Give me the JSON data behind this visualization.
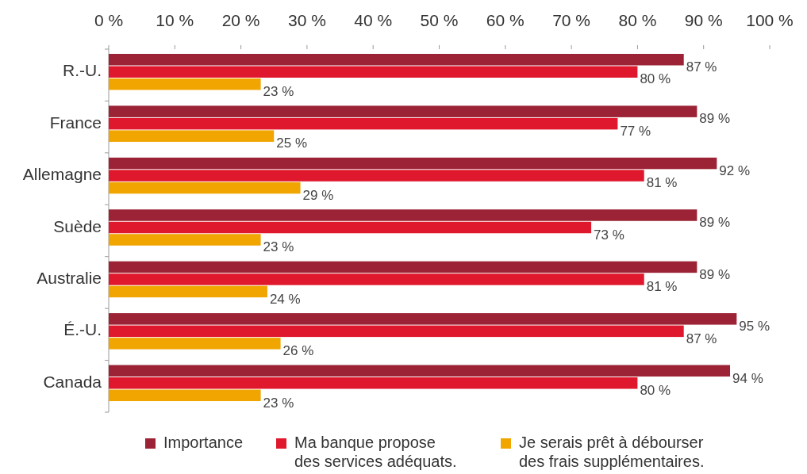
{
  "chart_data": {
    "type": "bar",
    "orientation": "horizontal",
    "categories": [
      "R.-U.",
      "France",
      "Allemagne",
      "Suède",
      "Australie",
      "É.-U.",
      "Canada"
    ],
    "series": [
      {
        "name": "Importance",
        "color": "#9b2335",
        "values": [
          87,
          89,
          92,
          89,
          89,
          95,
          94
        ],
        "value_labels": [
          "87 %",
          "89 %",
          "92 %",
          "89 %",
          "89 %",
          "95 %",
          "94 %"
        ]
      },
      {
        "name": "Ma banque propose\ndes services adéquats.",
        "color": "#e0182d",
        "values": [
          80,
          77,
          81,
          73,
          81,
          87,
          80
        ],
        "value_labels": [
          "80 %",
          "77 %",
          "81 %",
          "73 %",
          "81 %",
          "87 %",
          "80 %"
        ]
      },
      {
        "name": "Je serais prêt à débourser\ndes frais supplémentaires.",
        "color": "#f0a500",
        "values": [
          23,
          25,
          29,
          23,
          24,
          26,
          23
        ],
        "value_labels": [
          "23 %",
          "25 %",
          "29 %",
          "23 %",
          "24 %",
          "26 %",
          "23 %"
        ]
      }
    ],
    "xlim": [
      0,
      100
    ],
    "xticks": [
      {
        "value": 0,
        "label": "0 %"
      },
      {
        "value": 10,
        "label": "10 %"
      },
      {
        "value": 20,
        "label": "20 %"
      },
      {
        "value": 30,
        "label": "30 %"
      },
      {
        "value": 40,
        "label": "40 %"
      },
      {
        "value": 50,
        "label": "50 %"
      },
      {
        "value": 60,
        "label": "60 %"
      },
      {
        "value": 70,
        "label": "70 %"
      },
      {
        "value": 80,
        "label": "80 %"
      },
      {
        "value": 90,
        "label": "90 %"
      },
      {
        "value": 100,
        "label": "100 %"
      }
    ],
    "grid": false,
    "legend": "bottom"
  }
}
